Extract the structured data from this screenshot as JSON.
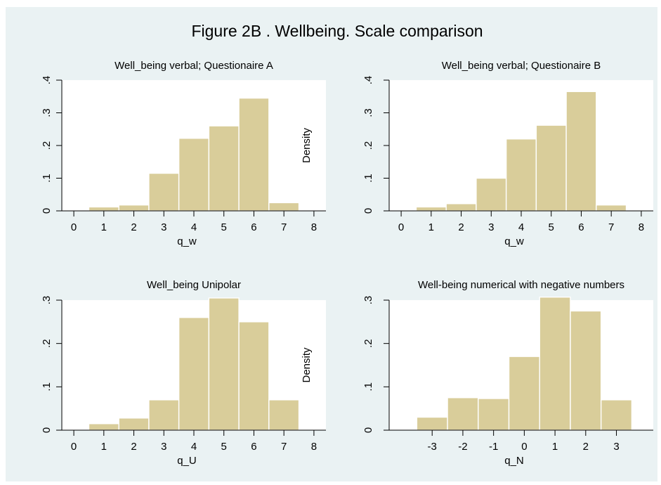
{
  "title": "Figure 2B . Wellbeing. Scale comparison",
  "colors": {
    "figure_background": "#eaf2f3",
    "bar_fill": "#d9cd9a",
    "bar_edge": "#ffffff"
  },
  "chart_data": [
    {
      "type": "bar",
      "title": "Well_being verbal; Questionaire A",
      "xlabel": "q_w",
      "ylabel": "Density",
      "xlim": [
        -0.4,
        8.4
      ],
      "ylim": [
        0,
        0.4
      ],
      "x_ticks": [
        "0",
        "1",
        "2",
        "3",
        "4",
        "5",
        "6",
        "7",
        "8"
      ],
      "y_ticks": [
        "0",
        ".1",
        ".2",
        ".3",
        ".4"
      ],
      "bin_width": 1,
      "bins": [
        1,
        2,
        3,
        4,
        5,
        6,
        7
      ],
      "values": [
        0.012,
        0.018,
        0.115,
        0.222,
        0.26,
        0.345,
        0.025
      ]
    },
    {
      "type": "bar",
      "title": "Well_being verbal; Questionaire B",
      "xlabel": "q_w",
      "ylabel": "",
      "xlim": [
        -0.4,
        8.4
      ],
      "ylim": [
        0,
        0.4
      ],
      "x_ticks": [
        "0",
        "1",
        "2",
        "3",
        "4",
        "5",
        "6",
        "7",
        "8"
      ],
      "y_ticks": [
        "0",
        ".1",
        ".2",
        ".3",
        ".4"
      ],
      "bin_width": 1,
      "bins": [
        1,
        2,
        3,
        4,
        5,
        6,
        7
      ],
      "values": [
        0.012,
        0.022,
        0.1,
        0.22,
        0.262,
        0.365,
        0.018
      ]
    },
    {
      "type": "bar",
      "title": "Well_being  Unipolar",
      "xlabel": "q_U",
      "ylabel": "Density",
      "xlim": [
        -0.4,
        8.4
      ],
      "ylim": [
        0,
        0.3
      ],
      "x_ticks": [
        "0",
        "1",
        "2",
        "3",
        "4",
        "5",
        "6",
        "7",
        "8"
      ],
      "y_ticks": [
        "0",
        ".1",
        ".2",
        ".3"
      ],
      "bin_width": 1,
      "bins": [
        1,
        2,
        3,
        4,
        5,
        6,
        7
      ],
      "values": [
        0.015,
        0.028,
        0.07,
        0.26,
        0.305,
        0.25,
        0.07
      ]
    },
    {
      "type": "bar",
      "title": "Well-being numerical with negative numbers",
      "xlabel": "q_N",
      "ylabel": "",
      "xlim": [
        -4.4,
        4.2
      ],
      "ylim": [
        0,
        0.3
      ],
      "x_ticks": [
        "-3",
        "-2",
        "-1",
        "0",
        "1",
        "2",
        "3"
      ],
      "y_ticks": [
        "0",
        ".1",
        ".2",
        ".3"
      ],
      "bin_width": 1,
      "bins": [
        -3,
        -2,
        -1,
        0,
        1,
        2,
        3
      ],
      "values": [
        0.03,
        0.075,
        0.073,
        0.17,
        0.307,
        0.275,
        0.07
      ]
    }
  ]
}
